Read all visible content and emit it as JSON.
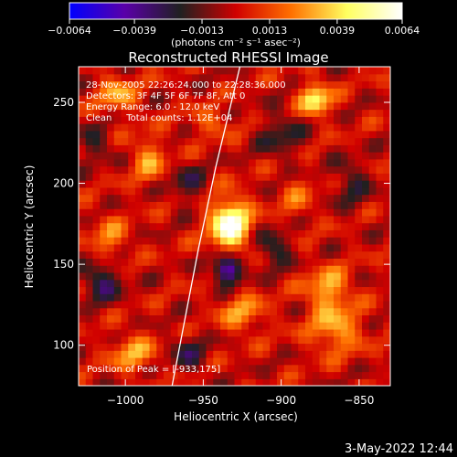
{
  "chart_data": {
    "type": "heatmap",
    "title": "Reconstructed RHESSI Image",
    "xlabel": "Heliocentric X (arcsec)",
    "ylabel": "Heliocentric Y (arcsec)",
    "xlim": [
      -1030,
      -830
    ],
    "ylim": [
      75,
      272
    ],
    "x_ticks": [
      -1000,
      -950,
      -900,
      -850
    ],
    "x_tick_labels": [
      "−1000",
      "−950",
      "−900",
      "−850"
    ],
    "y_ticks": [
      100,
      150,
      200,
      250
    ],
    "y_tick_labels": [
      "100",
      "150",
      "200",
      "250"
    ],
    "colorbar": {
      "min": -0.0064,
      "max": 0.0064,
      "ticks": [
        -0.0064,
        -0.0039,
        -0.0013,
        0.0013,
        0.0039,
        0.0064
      ],
      "tick_labels": [
        "−0.0064",
        "−0.0039",
        "−0.0013",
        "0.0013",
        "0.0039",
        "0.0064"
      ],
      "units_label": "(photons cm⁻² s⁻¹ asec⁻²)",
      "colors": [
        "#0000ff",
        "#5a00a8",
        "#202020",
        "#d00000",
        "#ff7000",
        "#ffff60",
        "#ffffff"
      ]
    },
    "annotations": [
      "28-Nov-2005 22:26:24.000 to 22:28:36.000",
      "Detectors: 3F 4F 5F 6F 7F 8F, Att 0",
      "Energy Range: 6.0 - 12.0 keV",
      "Clean     Total counts: 1.12E+04"
    ],
    "peak_label": "Position of Peak = [-933,175]",
    "peak": [
      -933,
      175
    ],
    "sources": [
      {
        "x": -933,
        "y": 175,
        "sx": 9,
        "sy": 11,
        "amp": 0.0064
      },
      {
        "x": -878,
        "y": 252,
        "sx": 7,
        "sy": 7,
        "amp": 0.0045
      },
      {
        "x": -870,
        "y": 135,
        "sx": 10,
        "sy": 9,
        "amp": 0.0032
      },
      {
        "x": -865,
        "y": 110,
        "sx": 12,
        "sy": 10,
        "amp": 0.003
      },
      {
        "x": -1005,
        "y": 255,
        "sx": 9,
        "sy": 8,
        "amp": 0.0028
      },
      {
        "x": -985,
        "y": 215,
        "sx": 8,
        "sy": 10,
        "amp": 0.0025
      },
      {
        "x": -925,
        "y": 120,
        "sx": 10,
        "sy": 8,
        "amp": 0.0026
      },
      {
        "x": -1010,
        "y": 165,
        "sx": 8,
        "sy": 10,
        "amp": 0.0022
      },
      {
        "x": -995,
        "y": 95,
        "sx": 10,
        "sy": 8,
        "amp": 0.0028
      },
      {
        "x": -945,
        "y": 238,
        "sx": 10,
        "sy": 6,
        "amp": 0.0018
      },
      {
        "x": -890,
        "y": 190,
        "sx": 8,
        "sy": 10,
        "amp": 0.0015
      },
      {
        "x": -935,
        "y": 147,
        "sx": 6,
        "sy": 6,
        "amp": -0.0055
      },
      {
        "x": -1015,
        "y": 140,
        "sx": 9,
        "sy": 9,
        "amp": -0.003
      },
      {
        "x": -960,
        "y": 200,
        "sx": 8,
        "sy": 8,
        "amp": -0.0022
      },
      {
        "x": -905,
        "y": 160,
        "sx": 8,
        "sy": 8,
        "amp": -0.0025
      },
      {
        "x": -900,
        "y": 230,
        "sx": 10,
        "sy": 10,
        "amp": -0.002
      },
      {
        "x": -960,
        "y": 95,
        "sx": 8,
        "sy": 8,
        "amp": -0.0022
      },
      {
        "x": -1020,
        "y": 225,
        "sx": 8,
        "sy": 8,
        "amp": -0.0018
      },
      {
        "x": -855,
        "y": 200,
        "sx": 8,
        "sy": 10,
        "amp": -0.002
      }
    ],
    "limb_curve": [
      [
        -970,
        75
      ],
      [
        -962,
        115
      ],
      [
        -953,
        160
      ],
      [
        -942,
        210
      ],
      [
        -932,
        250
      ],
      [
        -922,
        290
      ]
    ]
  },
  "footer": {
    "timestamp": "3-May-2022 12:44"
  }
}
